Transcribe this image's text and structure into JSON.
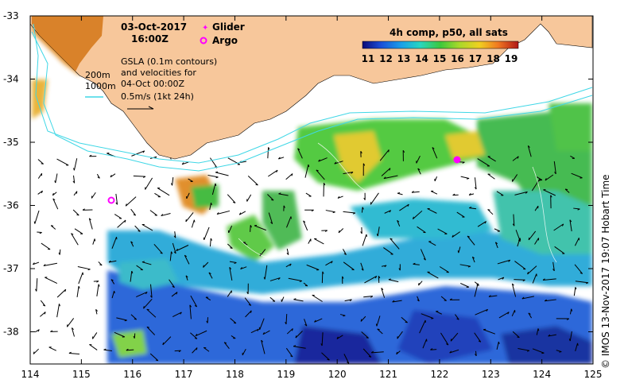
{
  "title": {
    "date": "03-Oct-2017",
    "time": "16:00Z"
  },
  "legend": {
    "glider_label": "Glider",
    "argo_label": "Argo"
  },
  "annotation": {
    "gsla_line1": "GSLA (0.1m contours)",
    "gsla_line2": "and velocities for",
    "gsla_line3": "04-Oct 00:00Z",
    "scale_label": "0.5m/s (1kt 24h)",
    "depth_200": "200m",
    "depth_1000": "1000m"
  },
  "colorbar": {
    "title": "4h comp, p50, all sats",
    "ticks": [
      "11",
      "12",
      "13",
      "14",
      "15",
      "16",
      "17",
      "18",
      "19"
    ]
  },
  "axes": {
    "x_ticks": [
      "114",
      "115",
      "116",
      "117",
      "118",
      "119",
      "120",
      "121",
      "122",
      "123",
      "124",
      "125"
    ],
    "y_ticks": [
      "-33",
      "-34",
      "-35",
      "-36",
      "-37",
      "-38"
    ]
  },
  "credit": "© IMOS 13-Nov-2017 19:07 Hobart Time",
  "colors": {
    "land": "#f7c79b",
    "isobath": "#3fd7e6",
    "glider": "#ff00ff",
    "argo": "#ff00ff"
  }
}
